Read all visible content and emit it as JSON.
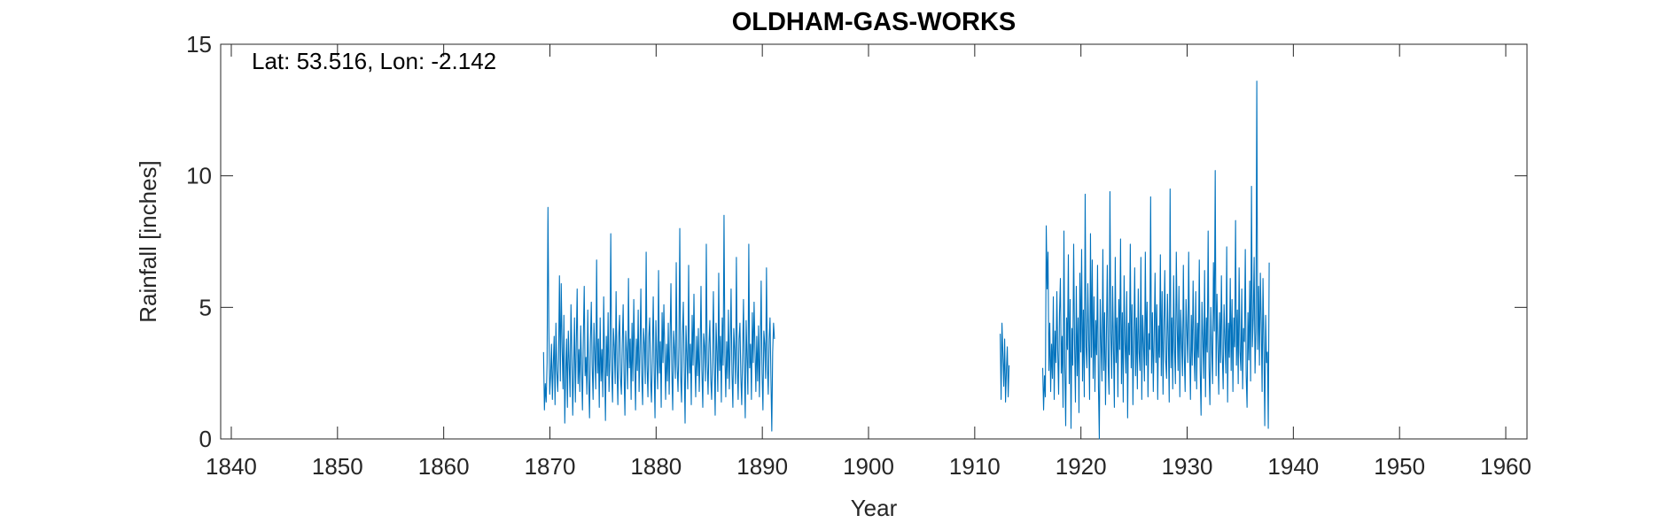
{
  "chart_data": {
    "type": "line",
    "title": "OLDHAM-GAS-WORKS",
    "xlabel": "Year",
    "ylabel": "Rainfall [inches]",
    "annotation": "Lat: 53.516, Lon: -2.142",
    "xlim": [
      1839,
      1962
    ],
    "ylim": [
      0,
      15
    ],
    "xticks": [
      1840,
      1850,
      1860,
      1870,
      1880,
      1890,
      1900,
      1910,
      1920,
      1930,
      1940,
      1950,
      1960
    ],
    "xtick_labels": [
      "1840",
      "1850",
      "1860",
      "1870",
      "1880",
      "1890",
      "1900",
      "1910",
      "1920",
      "1930",
      "1940",
      "1950",
      "1960"
    ],
    "yticks": [
      0,
      5,
      10,
      15
    ],
    "ytick_labels": [
      "0",
      "5",
      "10",
      "15"
    ],
    "grid": false,
    "line_color": "#0072BD",
    "series": [
      {
        "x_start": 1869.4,
        "x_step": 0.0833,
        "values": [
          3.3,
          1.1,
          2.1,
          1.4,
          2.9,
          8.8,
          4.2,
          1.7,
          2.4,
          3.6,
          1.5,
          2.8,
          3.9,
          1.3,
          4.4,
          2.6,
          1.8,
          3.1,
          6.2,
          2.2,
          5.9,
          3.5,
          1.9,
          4.7,
          0.6,
          2.5,
          3.8,
          1.2,
          4.1,
          2.9,
          1.6,
          5.1,
          3.3,
          0.9,
          2.7,
          4.6,
          1.4,
          3.6,
          5.7,
          2.1,
          3.4,
          1.8,
          4.3,
          2.6,
          1.1,
          3.9,
          5.8,
          2.4,
          3.1,
          1.7,
          4.9,
          2.3,
          0.8,
          3.7,
          5.2,
          2.8,
          1.5,
          4.4,
          3.2,
          1.9,
          6.8,
          2.5,
          3.8,
          1.2,
          4.6,
          2.2,
          3.4,
          1.6,
          5.4,
          2.9,
          0.7,
          3.9,
          2.4,
          4.8,
          1.8,
          3.1,
          7.8,
          2.6,
          1.4,
          4.2,
          3.5,
          2.1,
          5.6,
          2.8,
          1.3,
          3.9,
          4.7,
          2.3,
          1.7,
          3.6,
          5.1,
          2.5,
          0.9,
          4.1,
          3.3,
          1.9,
          6.1,
          2.7,
          3.8,
          1.5,
          4.4,
          2.2,
          5.3,
          3.1,
          1.1,
          3.8,
          2.6,
          4.9,
          1.8,
          3.4,
          5.7,
          2.4,
          1.3,
          4.2,
          3.6,
          2.1,
          7.1,
          2.8,
          1.6,
          3.9,
          4.6,
          2.3,
          1.4,
          3.2,
          5.4,
          2.7,
          0.8,
          4.5,
          3.1,
          1.9,
          6.4,
          2.5,
          3.7,
          1.2,
          4.8,
          2.9,
          5.1,
          3.3,
          1.5,
          3.6,
          2.2,
          4.4,
          1.7,
          3.8,
          5.9,
          2.6,
          1.1,
          4.1,
          3.4,
          2.3,
          6.7,
          2.8,
          1.8,
          3.5,
          8.0,
          2.4,
          1.4,
          3.9,
          5.2,
          2.7,
          0.6,
          4.3,
          3.2,
          1.9,
          6.6,
          2.5,
          3.6,
          1.3,
          4.7,
          2.8,
          5.5,
          3.0,
          1.6,
          3.9,
          2.4,
          4.2,
          1.8,
          3.3,
          5.8,
          2.6,
          1.2,
          4.0,
          3.5,
          2.2,
          7.4,
          2.9,
          1.7,
          3.6,
          4.5,
          2.3,
          1.5,
          3.1,
          5.6,
          2.7,
          0.9,
          4.4,
          3.3,
          1.8,
          6.3,
          2.6,
          3.9,
          1.4,
          4.6,
          2.8,
          8.5,
          3.2,
          1.6,
          3.7,
          2.3,
          4.9,
          1.9,
          3.5,
          5.7,
          2.5,
          1.2,
          4.2,
          3.4,
          2.1,
          6.9,
          2.8,
          1.5,
          3.8,
          4.4,
          2.4,
          1.3,
          3.2,
          5.3,
          2.6,
          0.8,
          4.5,
          3.1,
          1.7,
          7.4,
          2.7,
          3.6,
          1.5,
          4.8,
          2.9,
          5.2,
          3.4,
          1.8,
          3.9,
          2.2,
          4.3,
          1.6,
          3.5,
          6.0,
          2.5,
          1.1,
          4.1,
          3.6,
          2.3,
          6.5,
          2.8,
          1.7,
          3.8,
          4.6,
          2.4,
          0.3,
          3.3,
          4.4,
          3.8
        ]
      },
      {
        "x_start": 1912.4,
        "x_step": 0.0833,
        "values": [
          4.0,
          1.5,
          4.4,
          3.2,
          2.0,
          3.8,
          1.4,
          2.6,
          3.5,
          1.6,
          2.8
        ]
      },
      {
        "x_start": 1916.4,
        "x_step": 0.0833,
        "values": [
          2.7,
          1.1,
          2.4,
          1.6,
          8.1,
          5.7,
          7.1,
          2.6,
          4.4,
          1.8,
          3.6,
          2.3,
          5.4,
          1.5,
          4.1,
          2.9,
          5.6,
          3.3,
          1.7,
          4.8,
          6.1,
          2.5,
          3.9,
          1.2,
          7.9,
          2.7,
          0.5,
          4.6,
          3.4,
          7.0,
          2.1,
          5.3,
          0.4,
          4.2,
          2.8,
          7.4,
          3.6,
          1.4,
          5.8,
          2.4,
          4.6,
          1.0,
          6.3,
          3.3,
          7.2,
          2.2,
          4.9,
          1.6,
          9.3,
          3.5,
          2.7,
          5.9,
          3.8,
          1.5,
          7.8,
          3.1,
          6.8,
          2.3,
          5.4,
          1.8,
          4.5,
          3.2,
          6.6,
          2.0,
          0.0,
          5.3,
          3.6,
          2.2,
          7.2,
          2.6,
          4.8,
          1.3,
          3.9,
          6.6,
          2.8,
          1.7,
          9.4,
          4.1,
          2.3,
          5.8,
          3.5,
          1.2,
          6.9,
          2.9,
          4.6,
          1.6,
          5.3,
          3.4,
          7.6,
          2.1,
          4.8,
          1.4,
          6.2,
          3.7,
          2.5,
          5.6,
          0.8,
          4.4,
          3.2,
          7.4,
          2.7,
          5.1,
          1.3,
          3.8,
          6.5,
          2.4,
          4.6,
          1.9,
          5.7,
          3.3,
          2.6,
          6.9,
          1.5,
          4.7,
          3.6,
          2.2,
          7.1,
          2.8,
          5.2,
          1.6,
          4.0,
          3.4,
          9.2,
          2.5,
          4.8,
          1.8,
          3.9,
          6.3,
          2.9,
          5.1,
          1.5,
          4.3,
          3.1,
          7.0,
          2.4,
          5.6,
          1.7,
          4.2,
          6.4,
          3.0,
          2.3,
          5.5,
          3.8,
          1.4,
          9.5,
          2.7,
          4.6,
          1.9,
          6.2,
          3.5,
          2.1,
          7.1,
          4.3,
          2.6,
          5.8,
          1.6,
          4.9,
          3.7,
          2.4,
          6.6,
          3.2,
          1.8,
          5.3,
          4.1,
          2.9,
          7.1,
          3.6,
          1.5,
          4.7,
          2.8,
          6.0,
          3.4,
          2.2,
          5.6,
          1.9,
          4.4,
          3.1,
          6.8,
          2.6,
          0.9,
          5.2,
          3.8,
          2.3,
          6.4,
          1.6,
          4.6,
          3.3,
          7.9,
          2.7,
          1.3,
          5.0,
          3.5,
          2.1,
          6.7,
          4.1,
          10.2,
          2.4,
          5.5,
          3.6,
          1.7,
          4.8,
          2.9,
          6.2,
          3.2,
          1.9,
          5.1,
          3.8,
          2.5,
          7.3,
          1.4,
          4.4,
          3.1,
          6.1,
          2.6,
          5.3,
          1.8,
          4.6,
          3.5,
          8.3,
          2.8,
          4.9,
          2.1,
          6.5,
          3.3,
          2.6,
          5.7,
          1.9,
          4.2,
          3.7,
          7.2,
          2.4,
          1.2,
          4.8,
          3.0,
          6.0,
          2.2,
          9.6,
          3.5,
          4.6,
          6.9,
          2.5,
          4.1,
          13.6,
          3.4,
          5.8,
          2.8,
          6.3,
          4.4,
          1.8,
          6.1,
          3.6,
          0.5,
          4.7,
          2.9,
          3.3,
          0.4,
          6.7
        ]
      }
    ]
  }
}
